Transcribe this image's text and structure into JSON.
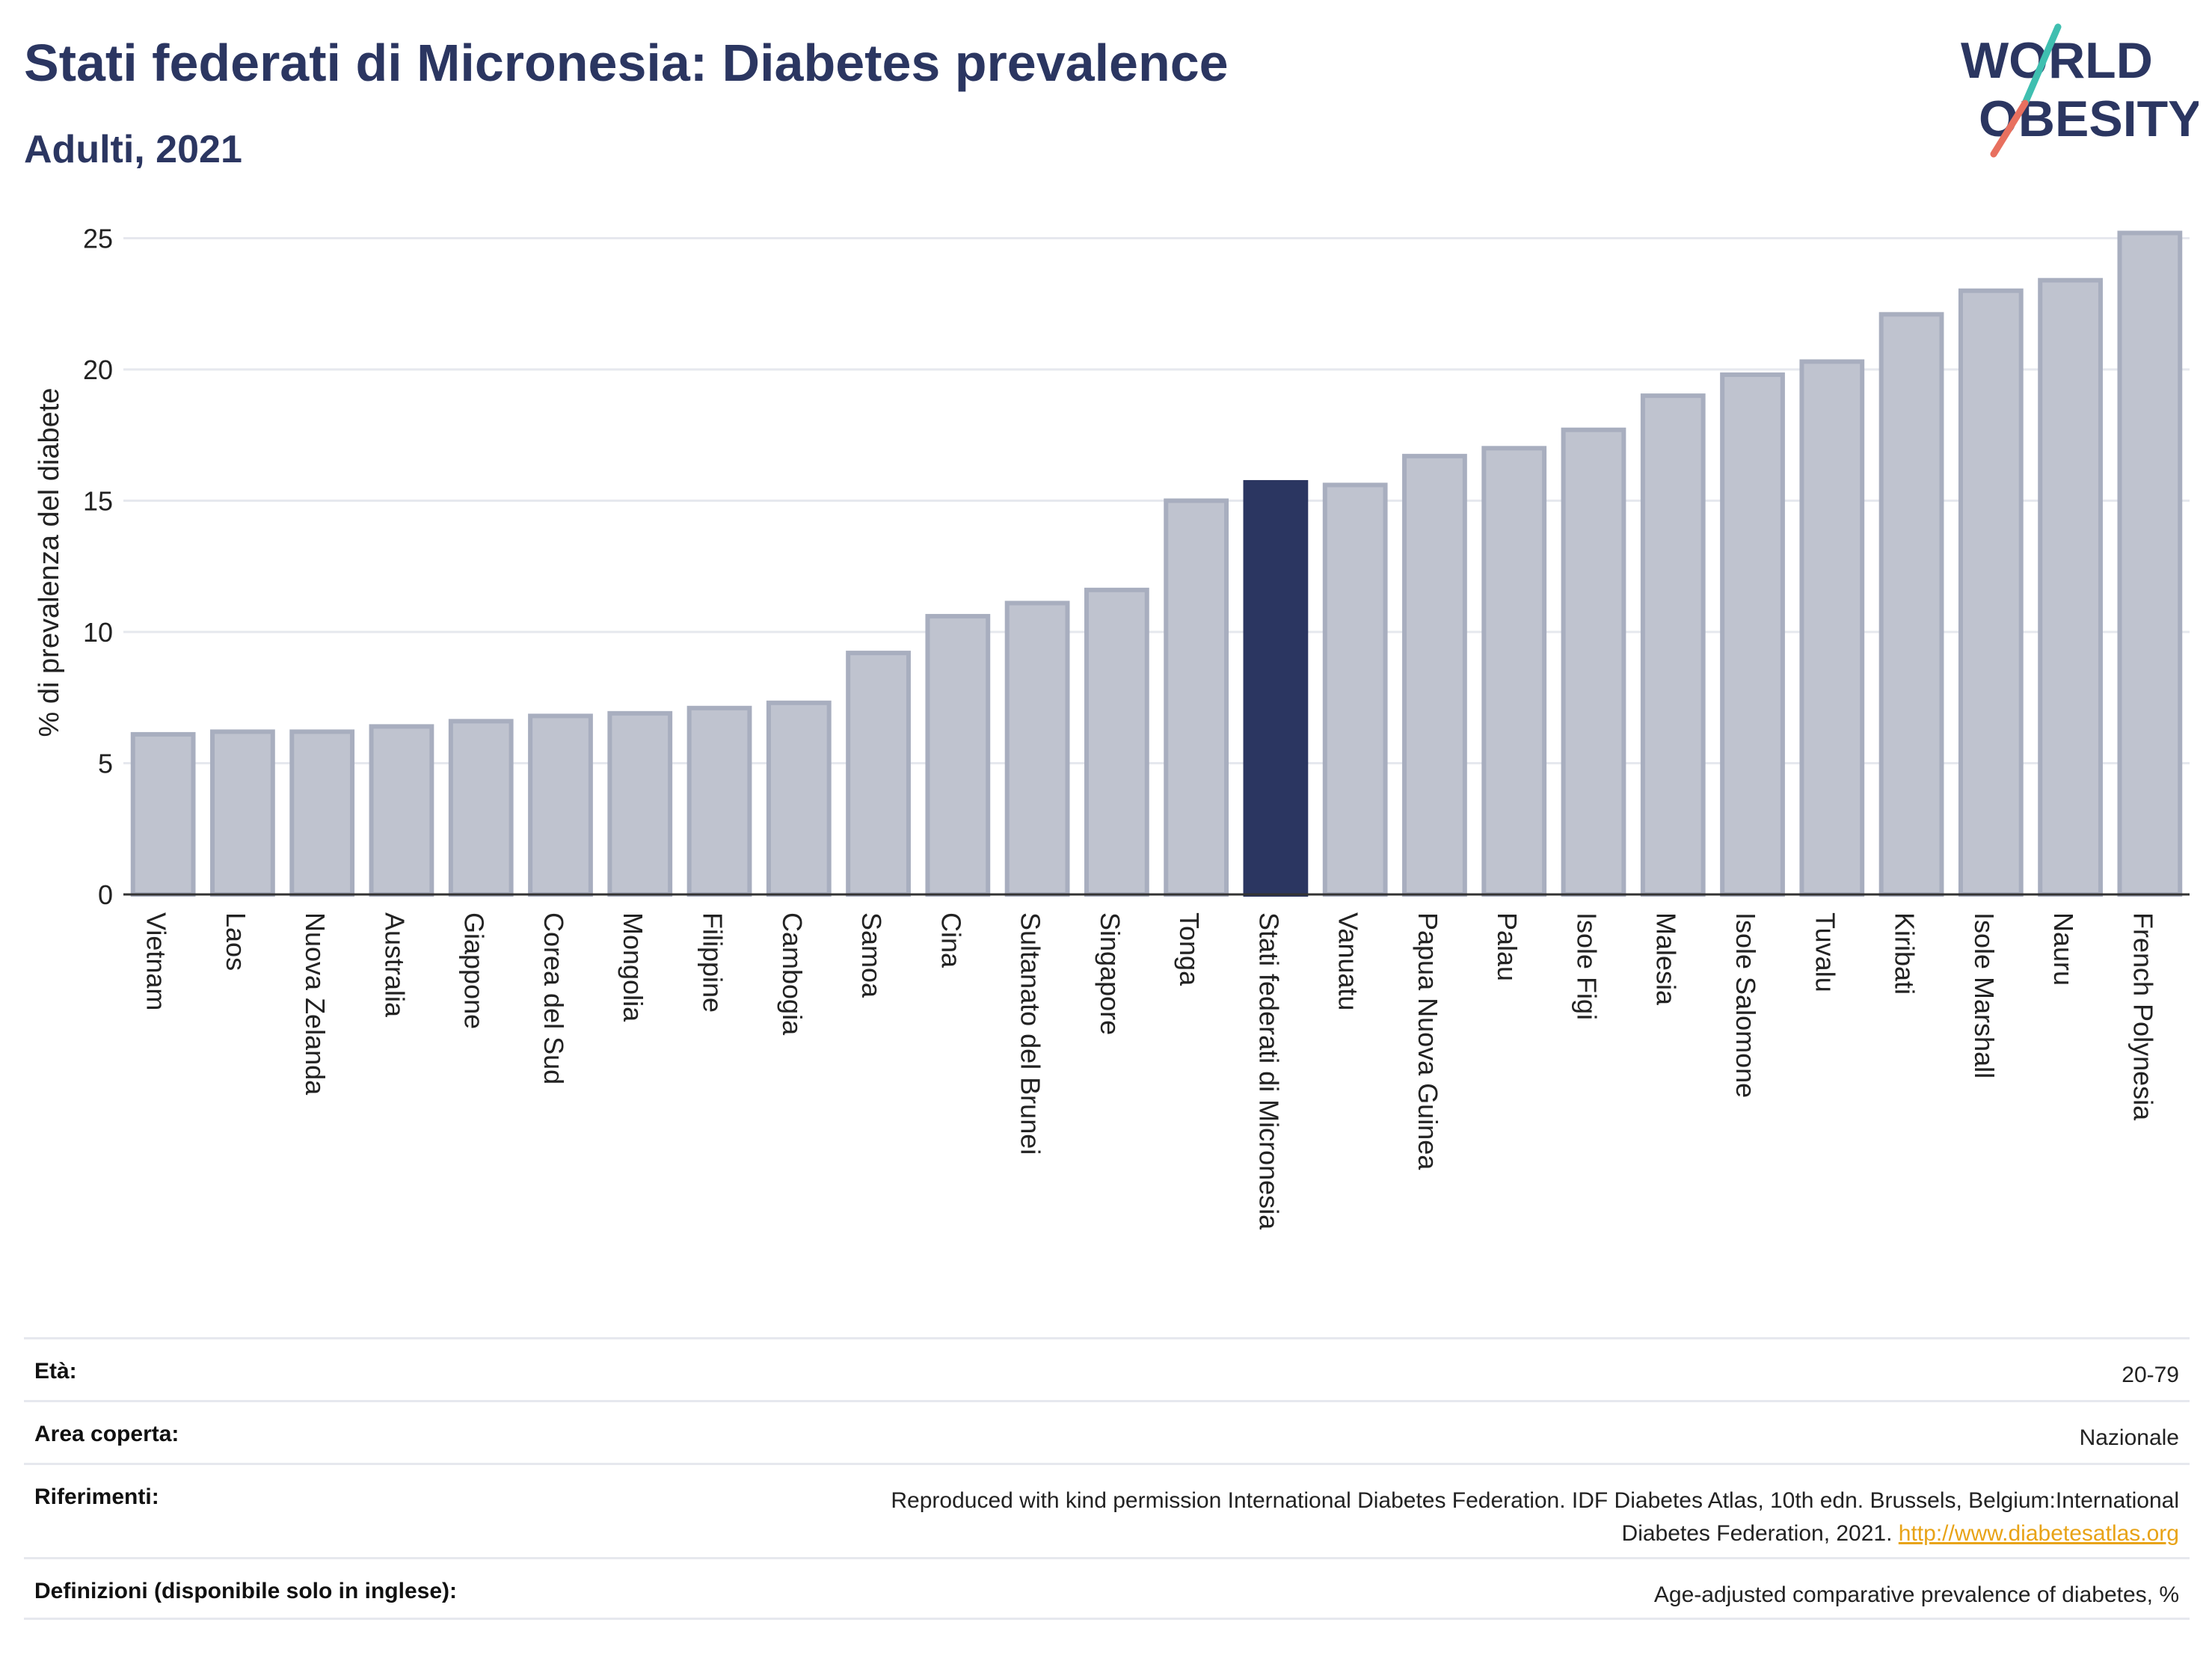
{
  "header": {
    "title": "Stati federati di Micronesia: Diabetes prevalence",
    "subtitle": "Adulti, 2021"
  },
  "logo": {
    "line1": "WORLD",
    "line2": "OBESITY",
    "color": "#2b3661",
    "slash_colors": [
      "#3fbfb0",
      "#e8705f"
    ]
  },
  "chart_data": {
    "type": "bar",
    "title": "",
    "xlabel": "",
    "ylabel": "% di prevalenza del diabete",
    "ylim": [
      0,
      25
    ],
    "yticks": [
      0,
      5,
      10,
      15,
      20,
      25
    ],
    "grid": true,
    "legend": "none",
    "highlight": "Stati federati di Micronesia",
    "colors": {
      "bar": "#bfc3cf",
      "bar_stroke": "#a8aebf",
      "highlight": "#2b3661",
      "grid": "#e6e8ee",
      "axis": "#333333"
    },
    "categories": [
      "Vietnam",
      "Laos",
      "Nuova Zelanda",
      "Australia",
      "Giappone",
      "Corea del Sud",
      "Mongolia",
      "Filippine",
      "Cambogia",
      "Samoa",
      "Cina",
      "Sultanato del Brunei",
      "Singapore",
      "Tonga",
      "Stati federati di Micronesia",
      "Vanuatu",
      "Papua Nuova Guinea",
      "Palau",
      "Isole Figi",
      "Malesia",
      "Isole Salomone",
      "Tuvalu",
      "Kiribati",
      "Isole Marshall",
      "Nauru",
      "French Polynesia"
    ],
    "values": [
      6.1,
      6.2,
      6.2,
      6.4,
      6.6,
      6.8,
      6.9,
      7.1,
      7.3,
      9.2,
      10.6,
      11.1,
      11.6,
      15.0,
      15.7,
      15.6,
      16.7,
      17.0,
      17.7,
      19.0,
      19.8,
      20.3,
      22.1,
      23.0,
      23.4,
      25.2
    ]
  },
  "meta": {
    "age_label": "Età:",
    "age_value": "20-79",
    "area_label": "Area coperta:",
    "area_value": "Nazionale",
    "refs_label": "Riferimenti:",
    "refs_line1": "Reproduced with kind permission International Diabetes Federation.  IDF Diabetes Atlas, 10th edn. Brussels, Belgium:International",
    "refs_line2": "Diabetes Federation, 2021.",
    "refs_link": "http://www.diabetesatlas.org",
    "defs_label": "Definizioni (disponibile solo in inglese):",
    "defs_value": "Age-adjusted comparative prevalence of diabetes, %"
  }
}
